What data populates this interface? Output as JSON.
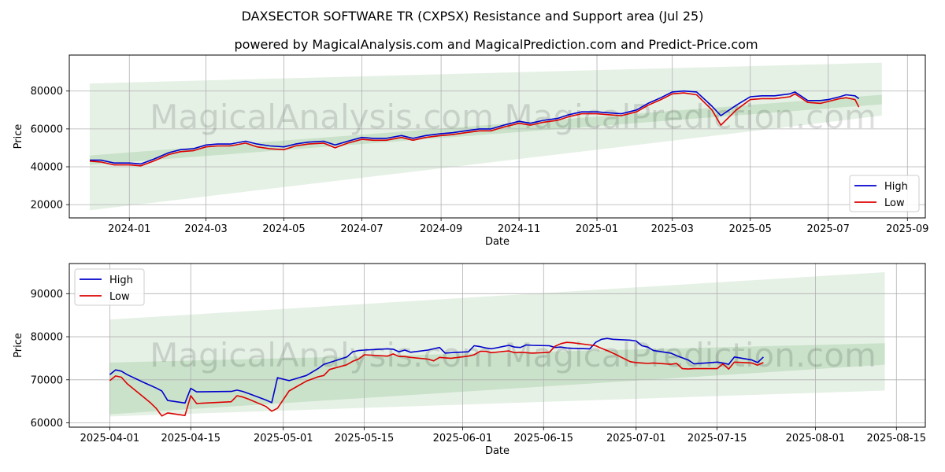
{
  "title": "DAXSECTOR SOFTWARE TR (CXPSX) Resistance and Support area (Jul 25)",
  "subtitle": "powered by MagicalAnalysis.com and MagicalPrediction.com and Predict-Price.com",
  "watermark": "MagicalAnalysis.com   MagicalPrediction.com",
  "colors": {
    "high": "#0000cc",
    "low": "#dd0000",
    "band": "#2e8b2e",
    "grid": "#b0b0b0"
  },
  "chart_data": [
    {
      "type": "line",
      "name": "top-chart",
      "xlabel": "Date",
      "ylabel": "Price",
      "xlim": [
        "2023-11-15",
        "2025-09-15"
      ],
      "ylim": [
        13000,
        99000
      ],
      "x_ticks": [
        "2024-01-01",
        "2024-03-01",
        "2024-05-01",
        "2024-07-01",
        "2024-09-01",
        "2024-11-01",
        "2025-01-01",
        "2025-03-01",
        "2025-05-01",
        "2025-07-01",
        "2025-09-01"
      ],
      "x_tick_labels": [
        "2024-01",
        "2024-03",
        "2024-05",
        "2024-07",
        "2024-09",
        "2024-11",
        "2025-01",
        "2025-03",
        "2025-05",
        "2025-07",
        "2025-09"
      ],
      "y_ticks": [
        20000,
        40000,
        60000,
        80000
      ],
      "y_tick_labels": [
        "20000",
        "40000",
        "60000",
        "80000"
      ],
      "legend": {
        "position": "lower-right",
        "entries": [
          "High",
          "Low"
        ]
      },
      "bands": [
        {
          "x0": "2023-12-01",
          "x1": "2025-08-12",
          "y0_low": 17000,
          "y0_high": 84000,
          "y1_low": 67000,
          "y1_high": 95000,
          "opacity": 0.12
        },
        {
          "x0": "2023-12-01",
          "x1": "2025-08-12",
          "y0_low": 41000,
          "y0_high": 46000,
          "y1_low": 73000,
          "y1_high": 78000,
          "opacity": 0.15
        }
      ],
      "series": [
        {
          "name": "High",
          "x": [
            "2023-12-01",
            "2023-12-10",
            "2023-12-20",
            "2024-01-01",
            "2024-01-10",
            "2024-01-20",
            "2024-02-01",
            "2024-02-10",
            "2024-02-20",
            "2024-03-01",
            "2024-03-10",
            "2024-03-20",
            "2024-04-01",
            "2024-04-10",
            "2024-04-20",
            "2024-05-01",
            "2024-05-10",
            "2024-05-20",
            "2024-06-01",
            "2024-06-10",
            "2024-06-20",
            "2024-07-01",
            "2024-07-10",
            "2024-07-20",
            "2024-08-01",
            "2024-08-10",
            "2024-08-20",
            "2024-09-01",
            "2024-09-10",
            "2024-09-20",
            "2024-10-01",
            "2024-10-10",
            "2024-10-20",
            "2024-11-01",
            "2024-11-10",
            "2024-11-20",
            "2024-12-01",
            "2024-12-10",
            "2024-12-20",
            "2025-01-01",
            "2025-01-10",
            "2025-01-20",
            "2025-02-01",
            "2025-02-10",
            "2025-02-20",
            "2025-03-01",
            "2025-03-10",
            "2025-03-20",
            "2025-04-01",
            "2025-04-08",
            "2025-04-20",
            "2025-05-01",
            "2025-05-10",
            "2025-05-20",
            "2025-06-01",
            "2025-06-05",
            "2025-06-15",
            "2025-06-25",
            "2025-07-01",
            "2025-07-10",
            "2025-07-15",
            "2025-07-22",
            "2025-07-25"
          ],
          "values": [
            43500,
            43500,
            42000,
            42000,
            41500,
            44000,
            47500,
            49000,
            49500,
            51500,
            52000,
            52000,
            53500,
            52000,
            51000,
            50500,
            52000,
            53000,
            53500,
            51500,
            53500,
            55500,
            55000,
            55000,
            56500,
            55000,
            56500,
            57500,
            58000,
            59000,
            60000,
            60000,
            62000,
            64000,
            63000,
            64500,
            65500,
            67500,
            69000,
            69000,
            68500,
            68000,
            70000,
            73500,
            76500,
            79500,
            80000,
            79500,
            72000,
            67000,
            72500,
            77000,
            77500,
            77500,
            78500,
            79500,
            75000,
            75000,
            75500,
            77000,
            78000,
            77500,
            76000
          ]
        },
        {
          "name": "Low",
          "x": [
            "2023-12-01",
            "2023-12-10",
            "2023-12-20",
            "2024-01-01",
            "2024-01-10",
            "2024-01-20",
            "2024-02-01",
            "2024-02-10",
            "2024-02-20",
            "2024-03-01",
            "2024-03-10",
            "2024-03-20",
            "2024-04-01",
            "2024-04-10",
            "2024-04-20",
            "2024-05-01",
            "2024-05-10",
            "2024-05-20",
            "2024-06-01",
            "2024-06-10",
            "2024-06-20",
            "2024-07-01",
            "2024-07-10",
            "2024-07-20",
            "2024-08-01",
            "2024-08-10",
            "2024-08-20",
            "2024-09-01",
            "2024-09-10",
            "2024-09-20",
            "2024-10-01",
            "2024-10-10",
            "2024-10-20",
            "2024-11-01",
            "2024-11-10",
            "2024-11-20",
            "2024-12-01",
            "2024-12-10",
            "2024-12-20",
            "2025-01-01",
            "2025-01-10",
            "2025-01-20",
            "2025-02-01",
            "2025-02-10",
            "2025-02-20",
            "2025-03-01",
            "2025-03-10",
            "2025-03-20",
            "2025-04-01",
            "2025-04-08",
            "2025-04-20",
            "2025-05-01",
            "2025-05-10",
            "2025-05-20",
            "2025-06-01",
            "2025-06-05",
            "2025-06-15",
            "2025-06-25",
            "2025-07-01",
            "2025-07-10",
            "2025-07-15",
            "2025-07-22",
            "2025-07-25"
          ],
          "values": [
            43000,
            42500,
            41000,
            41000,
            40500,
            43000,
            46500,
            48000,
            48500,
            50500,
            51000,
            51000,
            52500,
            50500,
            49500,
            49000,
            51000,
            52000,
            52500,
            50000,
            52500,
            54500,
            54000,
            54000,
            55500,
            54000,
            55500,
            56500,
            57000,
            58000,
            59000,
            59000,
            61000,
            63000,
            62000,
            63500,
            64500,
            66500,
            68000,
            68000,
            67500,
            67000,
            69000,
            72500,
            75500,
            78500,
            79000,
            78000,
            70000,
            62000,
            70000,
            75500,
            76000,
            76000,
            77000,
            78500,
            74000,
            73500,
            74500,
            76000,
            76500,
            75500,
            71500
          ]
        }
      ]
    },
    {
      "type": "line",
      "name": "bottom-chart",
      "xlabel": "Date",
      "ylabel": "Price",
      "xlim": [
        "2025-03-25",
        "2025-08-20"
      ],
      "ylim": [
        59000,
        97000
      ],
      "x_ticks": [
        "2025-04-01",
        "2025-04-15",
        "2025-05-01",
        "2025-05-15",
        "2025-06-01",
        "2025-06-15",
        "2025-07-01",
        "2025-07-15",
        "2025-08-01",
        "2025-08-15"
      ],
      "x_tick_labels": [
        "2025-04-01",
        "2025-04-15",
        "2025-05-01",
        "2025-05-15",
        "2025-06-01",
        "2025-06-15",
        "2025-07-01",
        "2025-07-15",
        "2025-08-01",
        "2025-08-15"
      ],
      "y_ticks": [
        60000,
        70000,
        80000,
        90000
      ],
      "y_tick_labels": [
        "60000",
        "70000",
        "80000",
        "90000"
      ],
      "legend": {
        "position": "upper-left",
        "entries": [
          "High",
          "Low"
        ]
      },
      "bands": [
        {
          "x0": "2025-04-01",
          "x1": "2025-08-13",
          "y0_low": 61500,
          "y0_high": 84000,
          "y1_low": 67500,
          "y1_high": 95000,
          "opacity": 0.12
        },
        {
          "x0": "2025-04-01",
          "x1": "2025-08-13",
          "y0_low": 62000,
          "y0_high": 74000,
          "y1_low": 73500,
          "y1_high": 78500,
          "opacity": 0.15
        }
      ],
      "series": [
        {
          "name": "High",
          "x": [
            "2025-04-01",
            "2025-04-02",
            "2025-04-03",
            "2025-04-04",
            "2025-04-07",
            "2025-04-08",
            "2025-04-09",
            "2025-04-10",
            "2025-04-11",
            "2025-04-14",
            "2025-04-15",
            "2025-04-16",
            "2025-04-22",
            "2025-04-23",
            "2025-04-24",
            "2025-04-25",
            "2025-04-28",
            "2025-04-29",
            "2025-04-30",
            "2025-05-02",
            "2025-05-05",
            "2025-05-06",
            "2025-05-07",
            "2025-05-08",
            "2025-05-09",
            "2025-05-12",
            "2025-05-13",
            "2025-05-14",
            "2025-05-15",
            "2025-05-19",
            "2025-05-20",
            "2025-05-21",
            "2025-05-22",
            "2025-05-23",
            "2025-05-26",
            "2025-05-27",
            "2025-05-28",
            "2025-05-29",
            "2025-05-30",
            "2025-06-02",
            "2025-06-03",
            "2025-06-04",
            "2025-06-05",
            "2025-06-06",
            "2025-06-09",
            "2025-06-10",
            "2025-06-11",
            "2025-06-12",
            "2025-06-13",
            "2025-06-16",
            "2025-06-17",
            "2025-06-18",
            "2025-06-19",
            "2025-06-20",
            "2025-06-23",
            "2025-06-24",
            "2025-06-25",
            "2025-06-26",
            "2025-06-27",
            "2025-06-30",
            "2025-07-01",
            "2025-07-02",
            "2025-07-03",
            "2025-07-04",
            "2025-07-07",
            "2025-07-08",
            "2025-07-09",
            "2025-07-10",
            "2025-07-11",
            "2025-07-14",
            "2025-07-15",
            "2025-07-16",
            "2025-07-17",
            "2025-07-18",
            "2025-07-21",
            "2025-07-22",
            "2025-07-23"
          ],
          "values": [
            71200,
            72300,
            72000,
            71200,
            69300,
            68700,
            68100,
            67400,
            65200,
            64600,
            68000,
            67200,
            67300,
            67600,
            67300,
            66800,
            65300,
            64700,
            70500,
            69800,
            71000,
            71800,
            72600,
            73600,
            74000,
            75300,
            76500,
            76800,
            76900,
            77200,
            77100,
            76500,
            76900,
            76400,
            76900,
            77200,
            77500,
            76200,
            76300,
            76500,
            77900,
            77700,
            77400,
            77200,
            78000,
            77600,
            77500,
            78100,
            78000,
            77900,
            77500,
            77600,
            77400,
            77300,
            77200,
            78700,
            79400,
            79600,
            79400,
            79200,
            79000,
            77900,
            77600,
            76800,
            76200,
            75600,
            75100,
            74600,
            73700,
            74000,
            74100,
            73900,
            73600,
            75300,
            74600,
            74000,
            75300
          ]
        },
        {
          "name": "Low",
          "x": [
            "2025-04-01",
            "2025-04-02",
            "2025-04-03",
            "2025-04-04",
            "2025-04-07",
            "2025-04-08",
            "2025-04-09",
            "2025-04-10",
            "2025-04-11",
            "2025-04-14",
            "2025-04-15",
            "2025-04-16",
            "2025-04-22",
            "2025-04-23",
            "2025-04-24",
            "2025-04-25",
            "2025-04-28",
            "2025-04-29",
            "2025-04-30",
            "2025-05-02",
            "2025-05-05",
            "2025-05-06",
            "2025-05-07",
            "2025-05-08",
            "2025-05-09",
            "2025-05-12",
            "2025-05-13",
            "2025-05-14",
            "2025-05-15",
            "2025-05-19",
            "2025-05-20",
            "2025-05-21",
            "2025-05-22",
            "2025-05-23",
            "2025-05-26",
            "2025-05-27",
            "2025-05-28",
            "2025-05-29",
            "2025-05-30",
            "2025-06-02",
            "2025-06-03",
            "2025-06-04",
            "2025-06-05",
            "2025-06-06",
            "2025-06-09",
            "2025-06-10",
            "2025-06-11",
            "2025-06-12",
            "2025-06-13",
            "2025-06-16",
            "2025-06-17",
            "2025-06-18",
            "2025-06-19",
            "2025-06-20",
            "2025-06-23",
            "2025-06-24",
            "2025-06-25",
            "2025-06-26",
            "2025-06-27",
            "2025-06-30",
            "2025-07-01",
            "2025-07-02",
            "2025-07-03",
            "2025-07-04",
            "2025-07-07",
            "2025-07-08",
            "2025-07-09",
            "2025-07-10",
            "2025-07-11",
            "2025-07-14",
            "2025-07-15",
            "2025-07-16",
            "2025-07-17",
            "2025-07-18",
            "2025-07-21",
            "2025-07-22",
            "2025-07-23"
          ],
          "values": [
            69800,
            70900,
            70600,
            69100,
            65800,
            64700,
            63400,
            61600,
            62300,
            61700,
            66300,
            64500,
            64900,
            66300,
            66000,
            65500,
            63800,
            62700,
            63400,
            67400,
            69700,
            70200,
            70700,
            71000,
            72400,
            73500,
            74300,
            74800,
            75800,
            75500,
            76000,
            75400,
            75400,
            75200,
            74800,
            74400,
            75200,
            75100,
            75000,
            75500,
            75800,
            76600,
            76600,
            76300,
            76700,
            76300,
            76400,
            76300,
            76200,
            76400,
            77800,
            78400,
            78700,
            78600,
            78100,
            77900,
            77300,
            76800,
            76200,
            74200,
            74000,
            73900,
            73800,
            73900,
            73600,
            73800,
            72600,
            72500,
            72600,
            72600,
            72600,
            73700,
            72500,
            74100,
            73900,
            73400,
            74000
          ]
        }
      ]
    }
  ]
}
